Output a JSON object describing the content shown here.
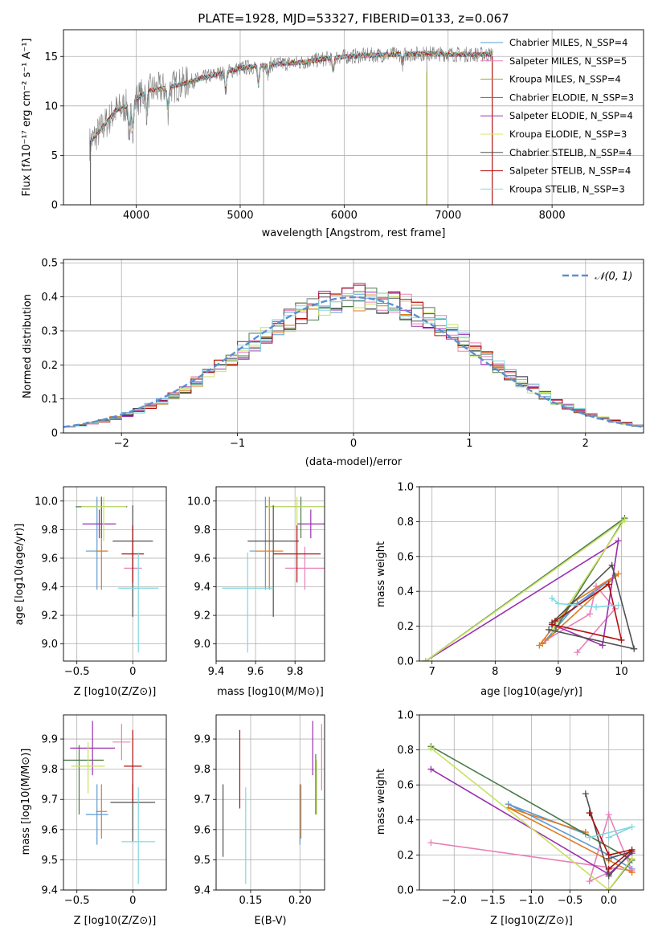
{
  "chart_data": [
    {
      "type": "line",
      "title": "PLATE=1928, MJD=53327, FIBERID=0133, z=0.067",
      "xlabel": "wavelength [Angstrom, rest frame]",
      "ylabel": "Flux [fλ10⁻¹⁷ erg cm⁻² s⁻¹ A⁻¹]",
      "xlim": [
        3300,
        8880
      ],
      "ylim": [
        0,
        17.7
      ],
      "xticks": [
        4000,
        5000,
        6000,
        7000,
        8000
      ],
      "yticks": [
        0,
        5,
        10,
        15
      ],
      "legend_position": "upper right",
      "series": [
        {
          "name": "Chabrier MILES, N_SSP=4",
          "color": "#5b9bd5"
        },
        {
          "name": "Salpeter MILES, N_SSP=5",
          "color": "#e880b8"
        },
        {
          "name": "Kroupa MILES, N_SSP=4",
          "color": "#a0a020"
        },
        {
          "name": "Chabrier ELODIE, N_SSP=3",
          "color": "#4a7a4a"
        },
        {
          "name": "Salpeter ELODIE, N_SSP=4",
          "color": "#9a30b0"
        },
        {
          "name": "Kroupa ELODIE, N_SSP=3",
          "color": "#e0e060"
        },
        {
          "name": "Chabrier STELIB, N_SSP=4",
          "color": "#505050"
        },
        {
          "name": "Salpeter STELIB, N_SSP=4",
          "color": "#b01010"
        },
        {
          "name": "Kroupa STELIB, N_SSP=3",
          "color": "#80d8e0"
        }
      ],
      "continuum": {
        "wavelength": [
          3550,
          3650,
          3800,
          3950,
          4100,
          4300,
          4500,
          4700,
          5000,
          5300,
          5600,
          5900,
          6200,
          6500,
          6800,
          7100,
          7400,
          7430
        ],
        "flux": [
          6.2,
          7.5,
          9.5,
          10.2,
          11.5,
          11.8,
          12.4,
          13.0,
          13.8,
          14.2,
          14.4,
          14.9,
          15.1,
          15.2,
          15.3,
          15.2,
          15.2,
          15.3
        ]
      }
    },
    {
      "type": "histogram",
      "xlabel": "(data-model)/error",
      "ylabel": "Normed distribution",
      "xlim": [
        -2.5,
        2.5
      ],
      "ylim": [
        0,
        0.51
      ],
      "xticks": [
        -2,
        -1,
        0,
        1,
        2
      ],
      "yticks": [
        0.0,
        0.1,
        0.2,
        0.3,
        0.4,
        0.5
      ],
      "legend": "𝒩(0, 1)",
      "reference_curve": "gaussian mean 0 sigma 1"
    },
    {
      "type": "scatter",
      "xlabel": "Z [log10(Z/Z⊙)]",
      "ylabel": "age  [log10(age/yr)]",
      "xlim": [
        -0.62,
        0.3
      ],
      "ylim": [
        8.88,
        10.1
      ],
      "xticks": [
        -0.5,
        0.0
      ],
      "yticks": [
        9.0,
        9.2,
        9.4,
        9.6,
        9.8,
        10.0
      ],
      "points": [
        {
          "x": -0.32,
          "y": 9.65,
          "xerr": 0.1,
          "yerr": [
            0.27,
            0.38
          ],
          "color": "#5b9bd5"
        },
        {
          "x": 0.0,
          "y": 9.53,
          "xerr": 0.08,
          "yerr": [
            0.15,
            0.15
          ],
          "color": "#e880b8"
        },
        {
          "x": -0.28,
          "y": 9.65,
          "xerr": 0.05,
          "yerr": [
            0.27,
            0.38
          ],
          "color": "#e07b20"
        },
        {
          "x": -0.28,
          "y": 9.96,
          "xerr": 0.23,
          "yerr": [
            0.22,
            0.07
          ],
          "color": "#4a7a4a"
        },
        {
          "x": -0.3,
          "y": 9.84,
          "xerr": 0.15,
          "yerr": [
            0.1,
            0.1
          ],
          "color": "#9a30b0"
        },
        {
          "x": -0.26,
          "y": 9.96,
          "xerr": 0.2,
          "yerr": [
            0.24,
            0.07
          ],
          "color": "#c8e060"
        },
        {
          "x": 0.0,
          "y": 9.72,
          "xerr": 0.18,
          "yerr": [
            0.53,
            0.25
          ],
          "color": "#505050"
        },
        {
          "x": 0.0,
          "y": 9.63,
          "xerr": 0.1,
          "yerr": [
            0.2,
            0.2
          ],
          "color": "#b01010"
        },
        {
          "x": 0.05,
          "y": 9.39,
          "xerr": 0.18,
          "yerr": [
            0.45,
            0.25
          ],
          "color": "#80d8e0"
        }
      ]
    },
    {
      "type": "scatter",
      "xlabel": "mass [log10(M/M⊙)]",
      "xlim": [
        9.4,
        9.95
      ],
      "ylim": [
        8.88,
        10.1
      ],
      "xticks": [
        9.4,
        9.6,
        9.8
      ],
      "yticks": [
        9.0,
        9.2,
        9.4,
        9.6,
        9.8,
        10.0
      ],
      "points": [
        {
          "x": 9.65,
          "y": 9.65,
          "xerr": 0.08,
          "yerr": [
            0.27,
            0.38
          ],
          "color": "#5b9bd5"
        },
        {
          "x": 9.85,
          "y": 9.53,
          "xerr": 0.1,
          "yerr": [
            0.15,
            0.15
          ],
          "color": "#e880b8"
        },
        {
          "x": 9.67,
          "y": 9.65,
          "xerr": 0.07,
          "yerr": [
            0.27,
            0.38
          ],
          "color": "#e07b20"
        },
        {
          "x": 9.83,
          "y": 9.96,
          "xerr": 0.18,
          "yerr": [
            0.22,
            0.07
          ],
          "color": "#4a7a4a"
        },
        {
          "x": 9.88,
          "y": 9.84,
          "xerr": 0.07,
          "yerr": [
            0.1,
            0.1
          ],
          "color": "#9a30b0"
        },
        {
          "x": 9.81,
          "y": 9.96,
          "xerr": 0.15,
          "yerr": [
            0.24,
            0.07
          ],
          "color": "#c8e060"
        },
        {
          "x": 9.69,
          "y": 9.72,
          "xerr": 0.13,
          "yerr": [
            0.53,
            0.25
          ],
          "color": "#505050"
        },
        {
          "x": 9.81,
          "y": 9.63,
          "xerr": 0.12,
          "yerr": [
            0.2,
            0.2
          ],
          "color": "#b01010"
        },
        {
          "x": 9.56,
          "y": 9.39,
          "xerr": 0.13,
          "yerr": [
            0.45,
            0.25
          ],
          "color": "#80d8e0"
        }
      ]
    },
    {
      "type": "line",
      "xlabel": "age  [log10(age/yr)]",
      "ylabel": "mass weight",
      "xlim": [
        6.8,
        10.35
      ],
      "ylim": [
        0,
        1.0
      ],
      "xticks": [
        7,
        8,
        9,
        10
      ],
      "yticks": [
        0.0,
        0.2,
        0.4,
        0.6,
        0.8,
        1.0
      ],
      "series": [
        {
          "color": "#5b9bd5",
          "x": [
            8.9,
            9.9,
            9.3,
            8.8
          ],
          "y": [
            0.2,
            0.49,
            0.33,
            0.12
          ]
        },
        {
          "color": "#e880b8",
          "x": [
            8.8,
            9.5,
            9.6,
            9.9,
            9.3
          ],
          "y": [
            0.12,
            0.27,
            0.43,
            0.3,
            0.05
          ]
        },
        {
          "color": "#e07b20",
          "x": [
            8.75,
            9.95,
            9.2,
            8.7
          ],
          "y": [
            0.1,
            0.5,
            0.33,
            0.09
          ]
        },
        {
          "color": "#4a7a4a",
          "x": [
            6.9,
            10.05,
            8.95
          ],
          "y": [
            0.0,
            0.82,
            0.18
          ]
        },
        {
          "color": "#9a30b0",
          "x": [
            6.9,
            9.95,
            9.7,
            8.9
          ],
          "y": [
            0.0,
            0.69,
            0.09,
            0.21
          ]
        },
        {
          "color": "#c8e060",
          "x": [
            6.9,
            10.05,
            8.9
          ],
          "y": [
            0.0,
            0.81,
            0.18
          ]
        },
        {
          "color": "#505050",
          "x": [
            8.9,
            9.85,
            10.2,
            8.85
          ],
          "y": [
            0.22,
            0.55,
            0.07,
            0.18
          ]
        },
        {
          "color": "#b01010",
          "x": [
            8.95,
            9.8,
            10.0,
            8.9
          ],
          "y": [
            0.23,
            0.44,
            0.12,
            0.21
          ]
        },
        {
          "color": "#80d8e0",
          "x": [
            8.9,
            9.0,
            9.6,
            9.95
          ],
          "y": [
            0.36,
            0.33,
            0.31,
            0.32
          ]
        }
      ]
    },
    {
      "type": "scatter",
      "xlabel": "Z [log10(Z/Z⊙)]",
      "ylabel": "mass [log10(M/M⊙)]",
      "xlim": [
        -0.62,
        0.3
      ],
      "ylim": [
        9.4,
        9.98
      ],
      "xticks": [
        -0.5,
        0.0
      ],
      "yticks": [
        9.4,
        9.5,
        9.6,
        9.7,
        9.8,
        9.9
      ],
      "points": [
        {
          "x": -0.32,
          "y": 9.65,
          "xerr": 0.1,
          "yerr": [
            0.1,
            0.1
          ],
          "color": "#5b9bd5"
        },
        {
          "x": -0.1,
          "y": 9.89,
          "xerr": 0.08,
          "yerr": [
            0.06,
            0.06
          ],
          "color": "#e880b8"
        },
        {
          "x": -0.28,
          "y": 9.66,
          "xerr": 0.05,
          "yerr": [
            0.09,
            0.09
          ],
          "color": "#e07b20"
        },
        {
          "x": -0.48,
          "y": 9.83,
          "xerr": 0.22,
          "yerr": [
            0.18,
            0.05
          ],
          "color": "#4a7a4a"
        },
        {
          "x": -0.36,
          "y": 9.87,
          "xerr": 0.2,
          "yerr": [
            0.09,
            0.09
          ],
          "color": "#9a30b0"
        },
        {
          "x": -0.4,
          "y": 9.81,
          "xerr": 0.15,
          "yerr": [
            0.09,
            0.08
          ],
          "color": "#c8e060"
        },
        {
          "x": 0.0,
          "y": 9.69,
          "xerr": 0.2,
          "yerr": [
            0.13,
            0.06
          ],
          "color": "#505050"
        },
        {
          "x": 0.0,
          "y": 9.81,
          "xerr": 0.08,
          "yerr": [
            0.12,
            0.12
          ],
          "color": "#b01010"
        },
        {
          "x": 0.05,
          "y": 9.56,
          "xerr": 0.15,
          "yerr": [
            0.14,
            0.18
          ],
          "color": "#80d8e0"
        }
      ]
    },
    {
      "type": "scatter",
      "xlabel": "E(B-V)",
      "xlim": [
        0.115,
        0.225
      ],
      "ylim": [
        9.4,
        9.98
      ],
      "xticks": [
        0.15,
        0.2
      ],
      "yticks": [
        9.4,
        9.5,
        9.6,
        9.7,
        9.8,
        9.9
      ],
      "points": [
        {
          "x": 0.2,
          "y": 9.65,
          "yerr": [
            0.1,
            0.1
          ],
          "color": "#5b9bd5"
        },
        {
          "x": 0.222,
          "y": 9.84,
          "yerr": [
            0.11,
            0.11
          ],
          "color": "#e880b8"
        },
        {
          "x": 0.201,
          "y": 9.66,
          "yerr": [
            0.09,
            0.09
          ],
          "color": "#e07b20"
        },
        {
          "x": 0.216,
          "y": 9.75,
          "yerr": [
            0.1,
            0.1
          ],
          "color": "#4a7a4a"
        },
        {
          "x": 0.213,
          "y": 9.87,
          "yerr": [
            0.09,
            0.09
          ],
          "color": "#9a30b0"
        },
        {
          "x": 0.217,
          "y": 9.74,
          "yerr": [
            0.09,
            0.09
          ],
          "color": "#c8e060"
        },
        {
          "x": 0.122,
          "y": 9.63,
          "yerr": [
            0.12,
            0.12
          ],
          "color": "#505050"
        },
        {
          "x": 0.139,
          "y": 9.8,
          "yerr": [
            0.13,
            0.13
          ],
          "color": "#b01010"
        },
        {
          "x": 0.145,
          "y": 9.58,
          "yerr": [
            0.16,
            0.16
          ],
          "color": "#80d8e0"
        }
      ]
    },
    {
      "type": "line",
      "xlabel": "Z [log10(Z/Z⊙)]",
      "ylabel": "mass weight",
      "xlim": [
        -2.45,
        0.45
      ],
      "ylim": [
        0,
        1.0
      ],
      "xticks": [
        -2.0,
        -1.5,
        -1.0,
        -0.5,
        0.0
      ],
      "yticks": [
        0.0,
        0.2,
        0.4,
        0.6,
        0.8,
        1.0
      ],
      "series": [
        {
          "color": "#5b9bd5",
          "x": [
            -0.3,
            -1.3,
            0.0,
            0.3
          ],
          "y": [
            0.32,
            0.49,
            0.2,
            0.12
          ]
        },
        {
          "color": "#e880b8",
          "x": [
            -2.3,
            0.3,
            0.0,
            -0.25,
            0.0
          ],
          "y": [
            0.27,
            0.11,
            0.43,
            0.05,
            0.1
          ]
        },
        {
          "color": "#e07b20",
          "x": [
            -0.3,
            -1.3,
            0.0,
            0.3
          ],
          "y": [
            0.33,
            0.47,
            0.17,
            0.1
          ]
        },
        {
          "color": "#4a7a4a",
          "x": [
            -2.3,
            0.3,
            0.0
          ],
          "y": [
            0.82,
            0.17,
            0.0
          ]
        },
        {
          "color": "#9a30b0",
          "x": [
            -2.3,
            0.0,
            0.3
          ],
          "y": [
            0.69,
            0.09,
            0.21
          ]
        },
        {
          "color": "#c8e060",
          "x": [
            -2.3,
            0.0,
            0.3
          ],
          "y": [
            0.81,
            0.0,
            0.18
          ]
        },
        {
          "color": "#505050",
          "x": [
            -0.3,
            0.0,
            0.3,
            0.0
          ],
          "y": [
            0.55,
            0.08,
            0.22,
            0.18
          ]
        },
        {
          "color": "#b01010",
          "x": [
            -0.25,
            0.0,
            0.3,
            0.0
          ],
          "y": [
            0.44,
            0.2,
            0.23,
            0.12
          ]
        },
        {
          "color": "#80d8e0",
          "x": [
            -0.25,
            0.3,
            0.0
          ],
          "y": [
            0.3,
            0.36,
            0.3
          ]
        }
      ]
    }
  ]
}
